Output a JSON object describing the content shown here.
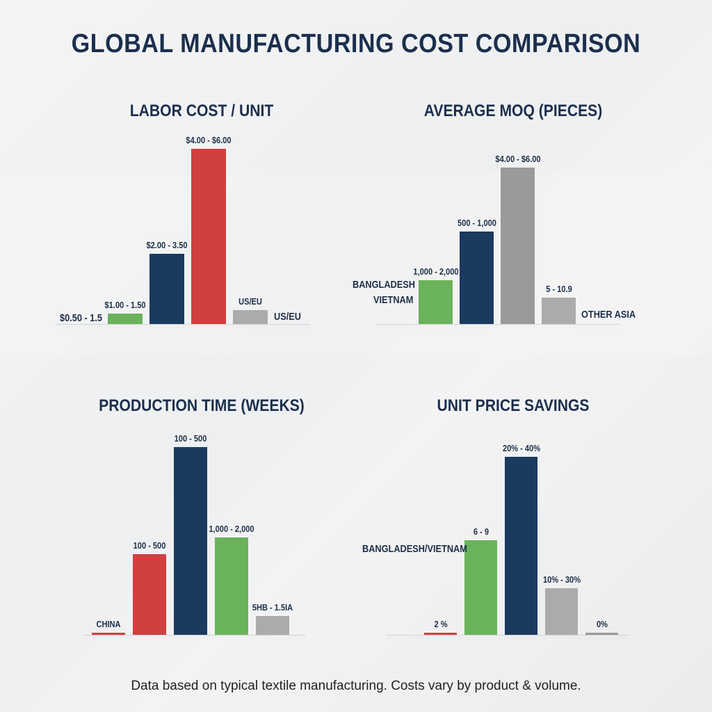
{
  "title": "GLOBAL MANUFACTURING COST COMPARISON",
  "footer": "Data based on typical textile manufacturing. Costs vary by product & volume.",
  "colors": {
    "green": "#6ab35a",
    "navy": "#1b3a5f",
    "red": "#d13f3f",
    "gray": "#9a9a9a",
    "light_gray": "#ababab",
    "text": "#1d2f48"
  },
  "chart_data": [
    {
      "type": "bar",
      "title": "LABOR COST / UNIT",
      "extra_labels": [
        "$0.50 - 1.5",
        "US/EU"
      ],
      "bars": [
        {
          "label": "$1.00 - 1.50",
          "value": 6,
          "color": "green"
        },
        {
          "label": "$2.00 - 3.50",
          "value": 40,
          "color": "navy"
        },
        {
          "label": "$4.00 - $6.00",
          "value": 100,
          "color": "red"
        },
        {
          "label": "US/EU",
          "value": 8,
          "color": "light_gray"
        }
      ]
    },
    {
      "type": "bar",
      "title": "AVERAGE MOQ (PIECES)",
      "extra_labels": [
        "BANGLADESH",
        "VIETNAM",
        "OTHER ASIA"
      ],
      "bars": [
        {
          "label": "1,000 - 2,000",
          "value": 28,
          "color": "green"
        },
        {
          "label": "500 - 1,000",
          "value": 59,
          "color": "navy"
        },
        {
          "label": "$4.00 - $6.00",
          "value": 100,
          "color": "gray"
        },
        {
          "label": "5 - 10.9",
          "value": 17,
          "color": "light_gray"
        }
      ]
    },
    {
      "type": "bar",
      "title": "PRODUCTION TIME (WEEKS)",
      "extra_labels": [],
      "bars": [
        {
          "label": "CHINA",
          "value": 1,
          "color": "red"
        },
        {
          "label": "100 - 500",
          "value": 43,
          "color": "red"
        },
        {
          "label": "100 - 500",
          "value": 100,
          "color": "navy"
        },
        {
          "label": "1,000 - 2,000",
          "value": 52,
          "color": "green"
        },
        {
          "label": "5HB - 1.5IA",
          "value": 10,
          "color": "light_gray"
        }
      ]
    },
    {
      "type": "bar",
      "title": "UNIT PRICE SAVINGS",
      "extra_labels": [
        "BANGLADESH/VIETNAM"
      ],
      "bars": [
        {
          "label": "2 %",
          "value": 1,
          "color": "red"
        },
        {
          "label": "6 - 9",
          "value": 53,
          "color": "green"
        },
        {
          "label": "20% - 40%",
          "value": 100,
          "color": "navy"
        },
        {
          "label": "10% - 30%",
          "value": 26,
          "color": "light_gray"
        },
        {
          "label": "0%",
          "value": 1,
          "color": "gray"
        }
      ]
    }
  ]
}
